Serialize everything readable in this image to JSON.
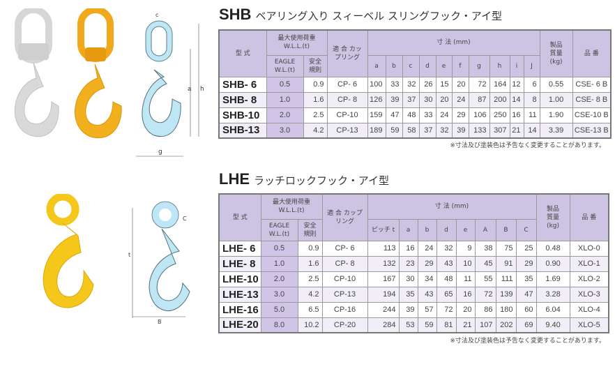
{
  "shb": {
    "code": "SHB",
    "subtitle": "ベアリング入り スィーベル スリングフック・アイ型",
    "headers": {
      "model": "型 式",
      "wll": "最大使用荷重 W.L.L.(t)",
      "eagle": "EAGLE W.L.(t)",
      "safety": "安全規則",
      "coupling": "適 合 カップリング",
      "dims": "寸 法 (mm)",
      "weight": "製品 質量 (kg)",
      "part": "品 番"
    },
    "dim_cols": [
      "a",
      "b",
      "c",
      "d",
      "e",
      "f",
      "g",
      "h",
      "i",
      "J"
    ],
    "rows": [
      {
        "model": "SHB- 6",
        "eagle": "0.5",
        "safety": "0.9",
        "coupling": "CP- 6",
        "dims": [
          "100",
          "33",
          "32",
          "26",
          "15",
          "20",
          "72",
          "164",
          "12",
          "6"
        ],
        "weight": "0.55",
        "part": "CSE- 6 B"
      },
      {
        "model": "SHB- 8",
        "eagle": "1.0",
        "safety": "1.6",
        "coupling": "CP- 8",
        "dims": [
          "126",
          "39",
          "37",
          "30",
          "20",
          "24",
          "87",
          "200",
          "14",
          "8"
        ],
        "weight": "1.00",
        "part": "CSE- 8 B"
      },
      {
        "model": "SHB-10",
        "eagle": "2.0",
        "safety": "2.5",
        "coupling": "CP-10",
        "dims": [
          "159",
          "47",
          "48",
          "33",
          "24",
          "29",
          "106",
          "250",
          "16",
          "11"
        ],
        "weight": "1.90",
        "part": "CSE-10 B"
      },
      {
        "model": "SHB-13",
        "eagle": "3.0",
        "safety": "4.2",
        "coupling": "CP-13",
        "dims": [
          "189",
          "59",
          "58",
          "37",
          "32",
          "39",
          "133",
          "307",
          "21",
          "14"
        ],
        "weight": "3.39",
        "part": "CSE-13 B"
      }
    ],
    "note": "※寸法及び塗装色は予告なく変更することがあります。",
    "diagram_labels": [
      "c",
      "i",
      "j",
      "b",
      "a",
      "h",
      "d",
      "f",
      "e",
      "g"
    ]
  },
  "lhe": {
    "code": "LHE",
    "subtitle": "ラッチロックフック・アイ型",
    "headers": {
      "model": "型 式",
      "wll": "最大使用荷重 W.L.L.(t)",
      "eagle": "EAGLE W.L.(t)",
      "safety": "安全規則",
      "coupling": "適 合 カップリング",
      "dims": "寸 法 (mm)",
      "weight": "製品 質量 (kg)",
      "part": "品 番"
    },
    "dim_cols": [
      "ピッチ t",
      "a",
      "b",
      "d",
      "e",
      "A",
      "B",
      "C"
    ],
    "rows": [
      {
        "model": "LHE- 6",
        "eagle": "0.5",
        "safety": "0.9",
        "coupling": "CP- 6",
        "dims": [
          "113",
          "16",
          "24",
          "32",
          "9",
          "38",
          "75",
          "25"
        ],
        "weight": "0.48",
        "part": "XLO-0"
      },
      {
        "model": "LHE- 8",
        "eagle": "1.0",
        "safety": "1.6",
        "coupling": "CP- 8",
        "dims": [
          "132",
          "23",
          "29",
          "43",
          "10",
          "45",
          "91",
          "29"
        ],
        "weight": "0.90",
        "part": "XLO-1"
      },
      {
        "model": "LHE-10",
        "eagle": "2.0",
        "safety": "2.5",
        "coupling": "CP-10",
        "dims": [
          "167",
          "30",
          "34",
          "48",
          "11",
          "55",
          "111",
          "35"
        ],
        "weight": "1.69",
        "part": "XLO-2"
      },
      {
        "model": "LHE-13",
        "eagle": "3.0",
        "safety": "4.2",
        "coupling": "CP-13",
        "dims": [
          "194",
          "35",
          "43",
          "65",
          "16",
          "72",
          "139",
          "47"
        ],
        "weight": "3.28",
        "part": "XLO-3"
      },
      {
        "model": "LHE-16",
        "eagle": "5.0",
        "safety": "6.5",
        "coupling": "CP-16",
        "dims": [
          "244",
          "39",
          "57",
          "72",
          "20",
          "86",
          "180",
          "60"
        ],
        "weight": "6.04",
        "part": "XLO-4"
      },
      {
        "model": "LHE-20",
        "eagle": "8.0",
        "safety": "10.2",
        "coupling": "CP-20",
        "dims": [
          "284",
          "53",
          "59",
          "81",
          "21",
          "107",
          "202",
          "69"
        ],
        "weight": "9.40",
        "part": "XLO-5"
      }
    ],
    "note": "※寸法及び塗装色は予告なく変更することがあります。",
    "diagram_labels": [
      "e",
      "C",
      "t",
      "d",
      "A",
      "b",
      "a",
      "B"
    ]
  },
  "colors": {
    "header": "#cdc3e3",
    "diagram": "#bfe6f4",
    "hook_yellow": "#f2b01e",
    "hook_gray": "#d8d8d8"
  }
}
